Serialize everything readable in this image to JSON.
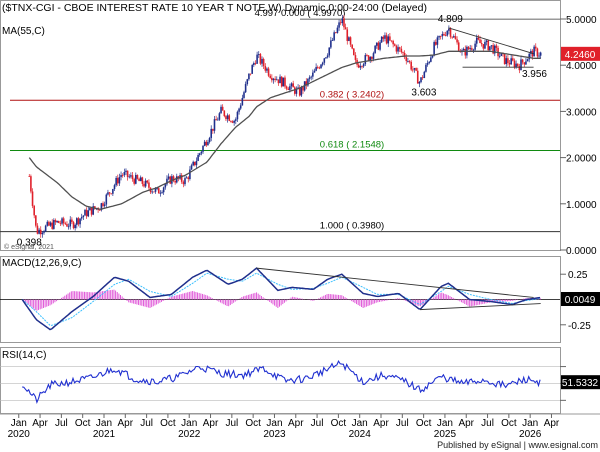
{
  "header": {
    "title": "($TNX-CGI - CBOE INTEREST RATE 10 YEAR T NOTE,W) Dynamic,0:00-24:00 (Delayed)",
    "ma_label": "MA(55,C)",
    "copyright": "© eSignal, 2021",
    "published": "Published by eSignal | www.esignal.com"
  },
  "colors": {
    "up": "#1f2f8c",
    "down": "#e0202a",
    "ma": "#505050",
    "fib_red": "#b01010",
    "fib_green": "#108a10",
    "macd": "#1f2f8c",
    "signal": "#3cc0ff",
    "hist": "#e05ad8",
    "rsi": "#1f2fd0",
    "price_badge": "#e0202a"
  },
  "chart_data": [
    {
      "type": "line",
      "panel": "price",
      "x": [
        "2020-02",
        "2020-03",
        "2020-06",
        "2020-08",
        "2020-10",
        "2020-12",
        "2021-03",
        "2021-06",
        "2021-08",
        "2021-10",
        "2021-12",
        "2022-03",
        "2022-05",
        "2022-07",
        "2022-09",
        "2022-10",
        "2022-12",
        "2023-02",
        "2023-04",
        "2023-06",
        "2023-08",
        "2023-10",
        "2023-12",
        "2024-02",
        "2024-04",
        "2024-07",
        "2024-09",
        "2024-11",
        "2025-01",
        "2025-03",
        "2025-05",
        "2025-07",
        "2025-09",
        "2025-11",
        "2026-01",
        "2026-02"
      ],
      "series": [
        {
          "name": "",
          "values": [
            1.6,
            0.4,
            0.6,
            0.55,
            0.8,
            0.95,
            1.65,
            1.45,
            1.25,
            1.55,
            1.5,
            2.4,
            3.0,
            2.8,
            3.8,
            4.2,
            3.8,
            3.6,
            3.4,
            3.8,
            4.3,
            4.997,
            4.0,
            4.2,
            4.6,
            4.2,
            3.62,
            4.4,
            4.809,
            4.25,
            4.5,
            4.4,
            4.1,
            4.0,
            4.3,
            4.246
          ]
        },
        {
          "name": "MA(55,C)",
          "values": [
            2.0,
            1.8,
            1.45,
            1.15,
            0.95,
            0.88,
            1.0,
            1.25,
            1.35,
            1.5,
            1.62,
            1.9,
            2.3,
            2.65,
            2.9,
            3.1,
            3.3,
            3.4,
            3.5,
            3.65,
            3.8,
            3.95,
            4.05,
            4.1,
            4.15,
            4.2,
            4.2,
            4.22,
            4.3,
            4.3,
            4.3,
            4.3,
            4.25,
            4.2,
            4.15,
            4.15
          ]
        }
      ],
      "ylim": [
        0,
        5.0
      ],
      "y_ticks": [
        "0.0000",
        "1.0000",
        "2.0000",
        "3.0000",
        "4.0000",
        "5.0000"
      ],
      "last_value": "4.2460",
      "fib_levels": [
        {
          "value": 3.2402,
          "label": "0.382 ( 3.2402)"
        },
        {
          "value": 2.1548,
          "label": "0.618 ( 2.1548)"
        },
        {
          "value": 0.398,
          "label": "1.000 ( 0.3980)"
        }
      ],
      "top_line_label": "4.997  0.000 ( 4.9970)",
      "annotations": [
        "0.398",
        "3.603",
        "4.809",
        "3.956"
      ]
    },
    {
      "type": "line",
      "panel": "macd",
      "title": "MACD(12,26,9,C)",
      "y_ticks": [
        "0.25",
        "-0.25"
      ],
      "ylim": [
        -0.42,
        0.42
      ],
      "last_value": "0.0049",
      "x": [
        "2020-01",
        "2020-03",
        "2020-05",
        "2020-08",
        "2020-11",
        "2021-02",
        "2021-04",
        "2021-07",
        "2021-10",
        "2022-01",
        "2022-03",
        "2022-06",
        "2022-08",
        "2022-10",
        "2023-01",
        "2023-03",
        "2023-06",
        "2023-08",
        "2023-10",
        "2024-01",
        "2024-03",
        "2024-06",
        "2024-09",
        "2024-12",
        "2025-01",
        "2025-04",
        "2025-07",
        "2025-10",
        "2025-12",
        "2026-02"
      ],
      "series": [
        {
          "name": "MACD",
          "values": [
            0.0,
            -0.2,
            -0.3,
            -0.12,
            0.03,
            0.22,
            0.18,
            0.02,
            0.05,
            0.22,
            0.29,
            0.15,
            0.2,
            0.31,
            0.09,
            0.12,
            0.1,
            0.2,
            0.25,
            0.06,
            0.03,
            0.06,
            -0.1,
            0.13,
            0.16,
            0.0,
            -0.02,
            -0.05,
            0.0,
            0.02
          ]
        },
        {
          "name": "Signal",
          "values": [
            0.0,
            -0.12,
            -0.26,
            -0.18,
            -0.02,
            0.15,
            0.2,
            0.08,
            0.03,
            0.16,
            0.26,
            0.2,
            0.18,
            0.26,
            0.15,
            0.1,
            0.11,
            0.16,
            0.22,
            0.12,
            0.05,
            0.05,
            -0.05,
            0.08,
            0.13,
            0.05,
            0.0,
            -0.04,
            -0.01,
            0.01
          ]
        }
      ]
    },
    {
      "type": "line",
      "panel": "rsi",
      "title": "RSI(14,C)",
      "y_ticks": [
        "70",
        "50",
        "30"
      ],
      "ylim": [
        15,
        92
      ],
      "last_value": "51.5332",
      "x": [
        "2020-01",
        "2020-03",
        "2020-05",
        "2020-08",
        "2020-11",
        "2021-02",
        "2021-05",
        "2021-08",
        "2021-11",
        "2022-02",
        "2022-05",
        "2022-08",
        "2022-11",
        "2023-02",
        "2023-05",
        "2023-08",
        "2023-10",
        "2024-01",
        "2024-04",
        "2024-07",
        "2024-09",
        "2024-12",
        "2025-03",
        "2025-06",
        "2025-09",
        "2025-12",
        "2026-02"
      ],
      "series": [
        {
          "name": "RSI",
          "values": [
            50,
            30,
            48,
            52,
            57,
            68,
            55,
            52,
            58,
            70,
            62,
            60,
            68,
            53,
            56,
            67,
            74,
            52,
            60,
            52,
            42,
            58,
            50,
            54,
            47,
            55,
            51.5
          ]
        }
      ]
    }
  ],
  "x_axis": {
    "months": [
      "Oct",
      "Jan",
      "Apr",
      "Jul",
      "Oct",
      "Jan",
      "Apr",
      "Jul",
      "Oct",
      "Jan",
      "Apr",
      "Jul",
      "Oct",
      "Jan",
      "Apr",
      "Jul",
      "Oct",
      "Jan",
      "Apr",
      "Jul",
      "Oct",
      "Jan",
      "Apr",
      "Jul",
      "Oct",
      "Jan",
      "Apr",
      "Jul",
      "Oct",
      "Jan",
      "Apr"
    ],
    "years": [
      "2020",
      "2021",
      "2022",
      "2023",
      "2024",
      "2025",
      "2026"
    ]
  }
}
